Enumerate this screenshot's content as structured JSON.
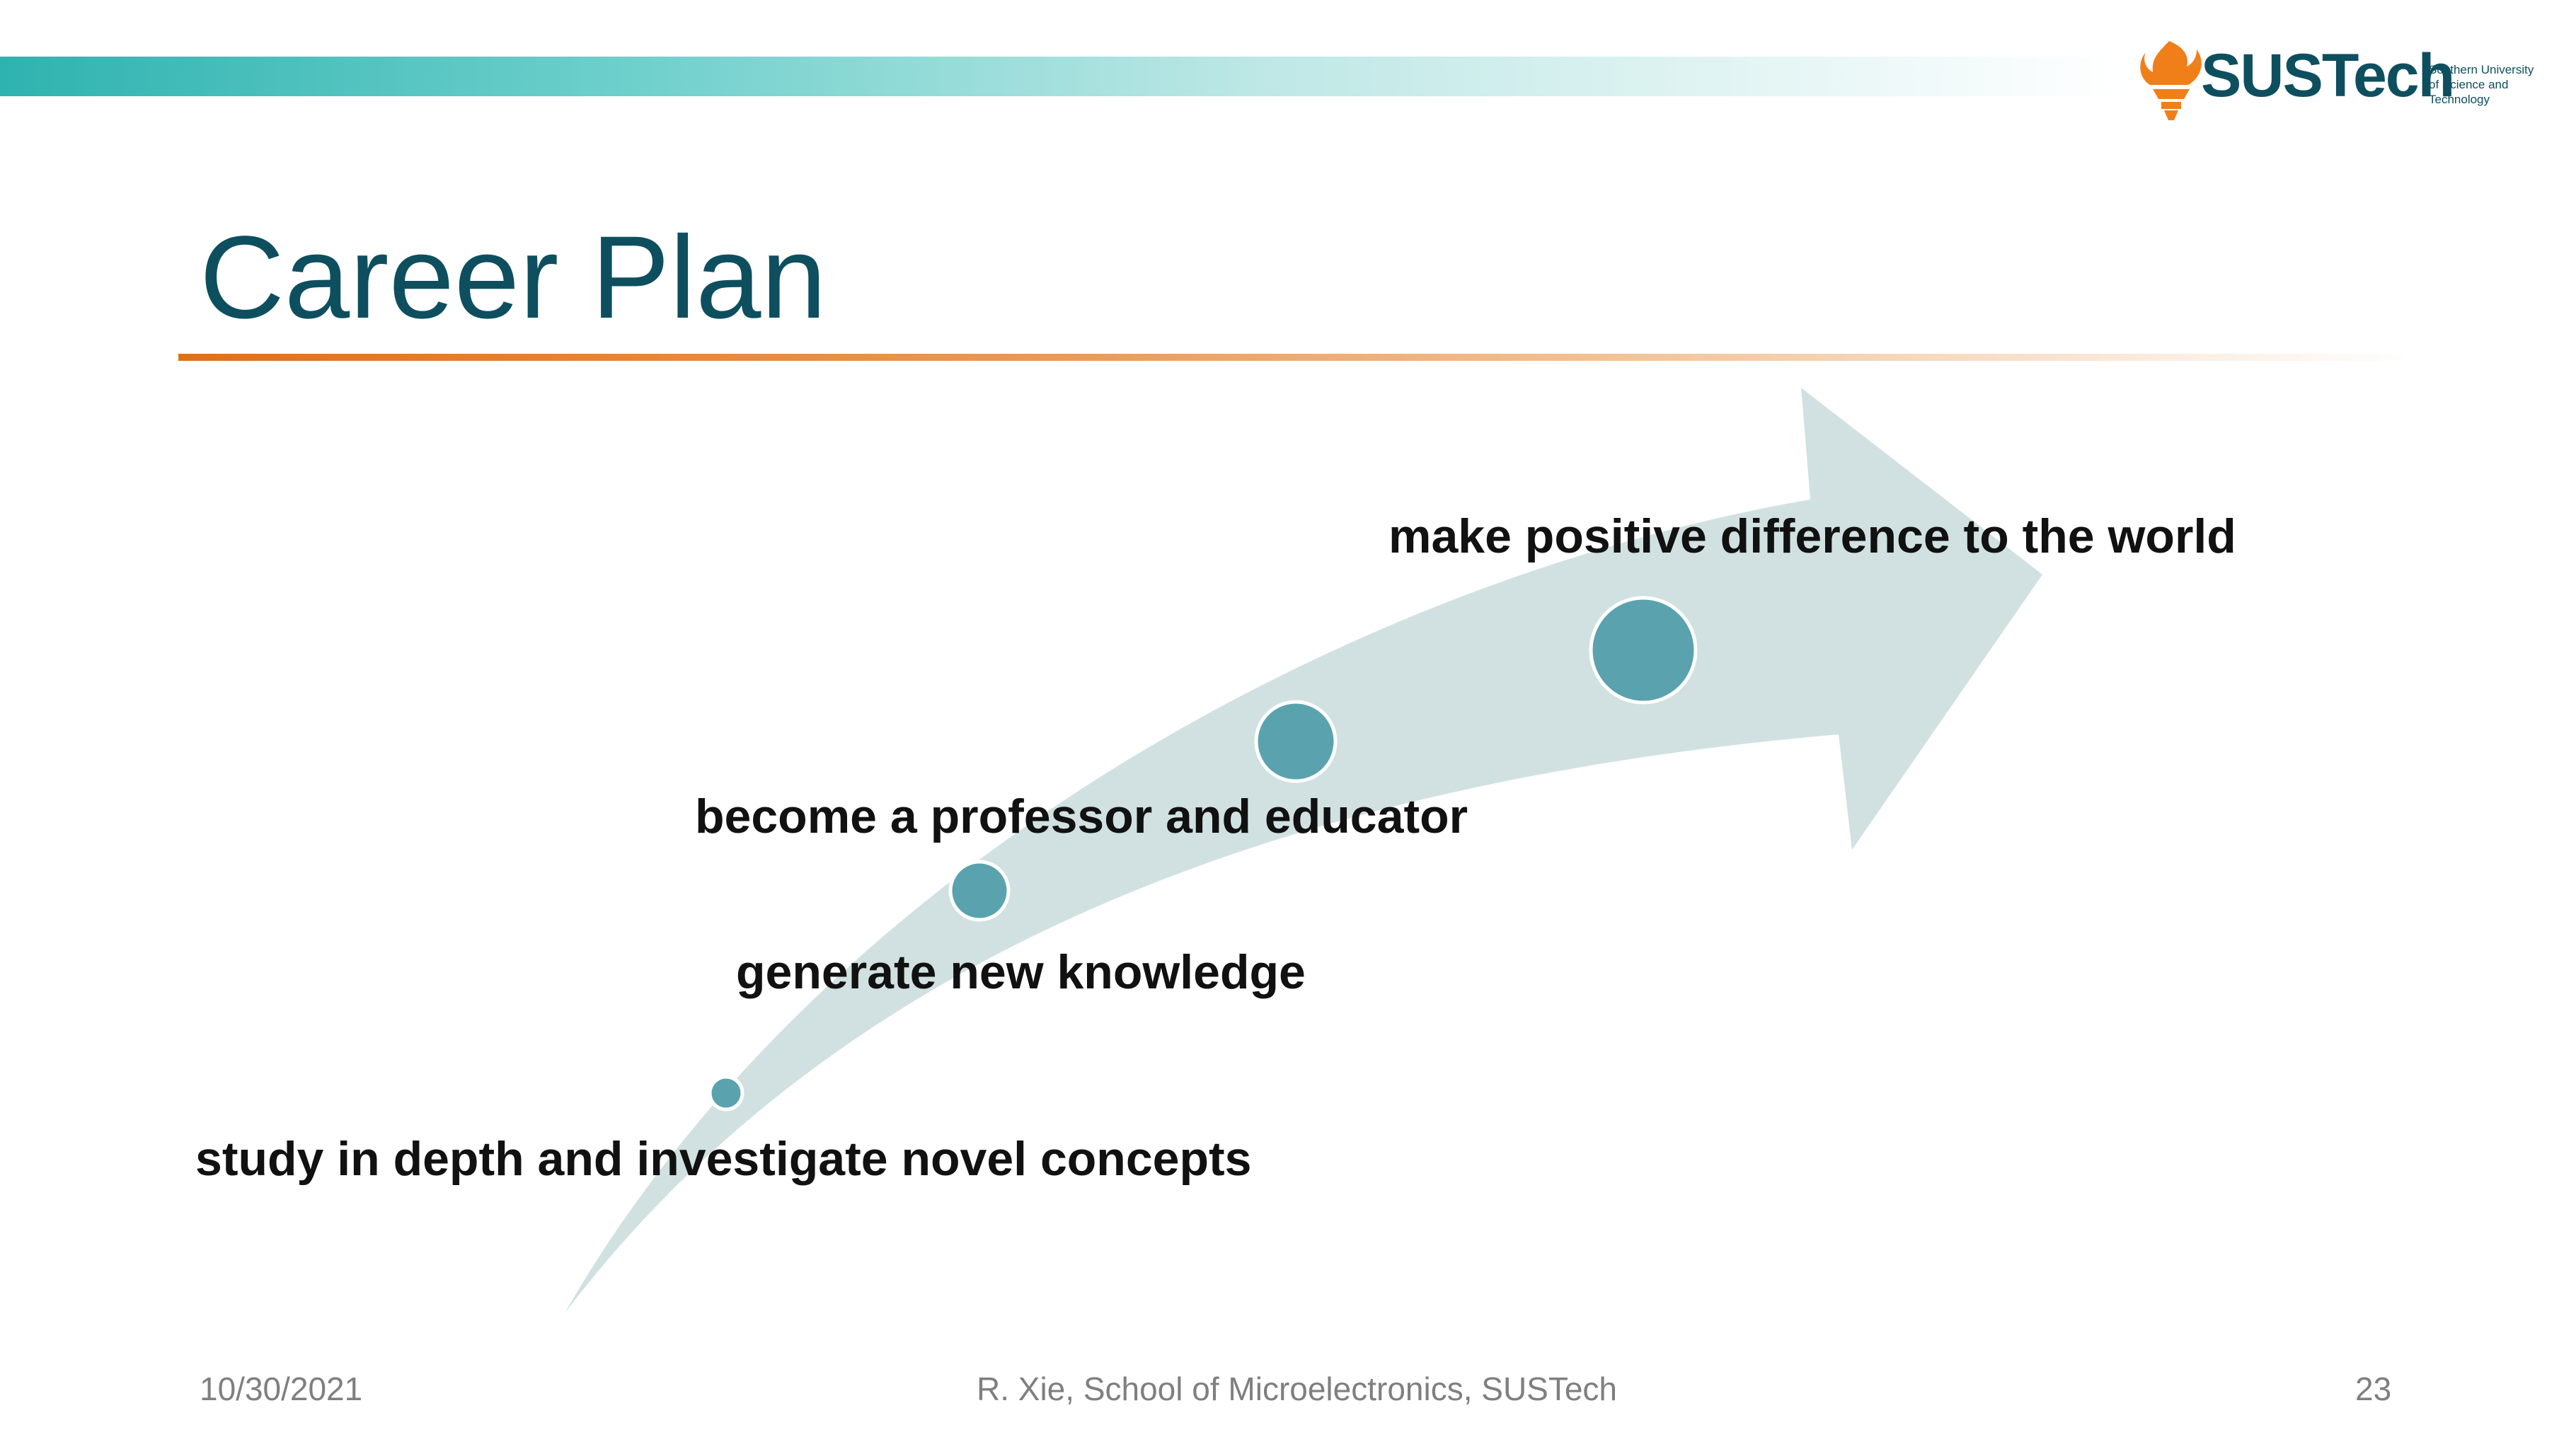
{
  "header": {
    "logo_word": "SUSTech",
    "logo_sub_1": "Southern University",
    "logo_sub_2": "of Science and",
    "logo_sub_3": "Technology"
  },
  "slide": {
    "title": "Career Plan"
  },
  "steps": [
    {
      "label": "study in depth and investigate novel concepts"
    },
    {
      "label": "generate new knowledge"
    },
    {
      "label": "become a professor and educator"
    },
    {
      "label": "make positive difference to the world"
    }
  ],
  "footer": {
    "date": "10/30/2021",
    "author": "R. Xie, School of Microelectronics, SUSTech",
    "page_number": "23"
  },
  "colors": {
    "title": "#0e4f5f",
    "arrow": "#d1e1e2",
    "node": "#5aa3ae",
    "accent_rule": "#e0701a",
    "top_bar": "#2fb3b0",
    "logo_flame": "#f07f1a"
  }
}
